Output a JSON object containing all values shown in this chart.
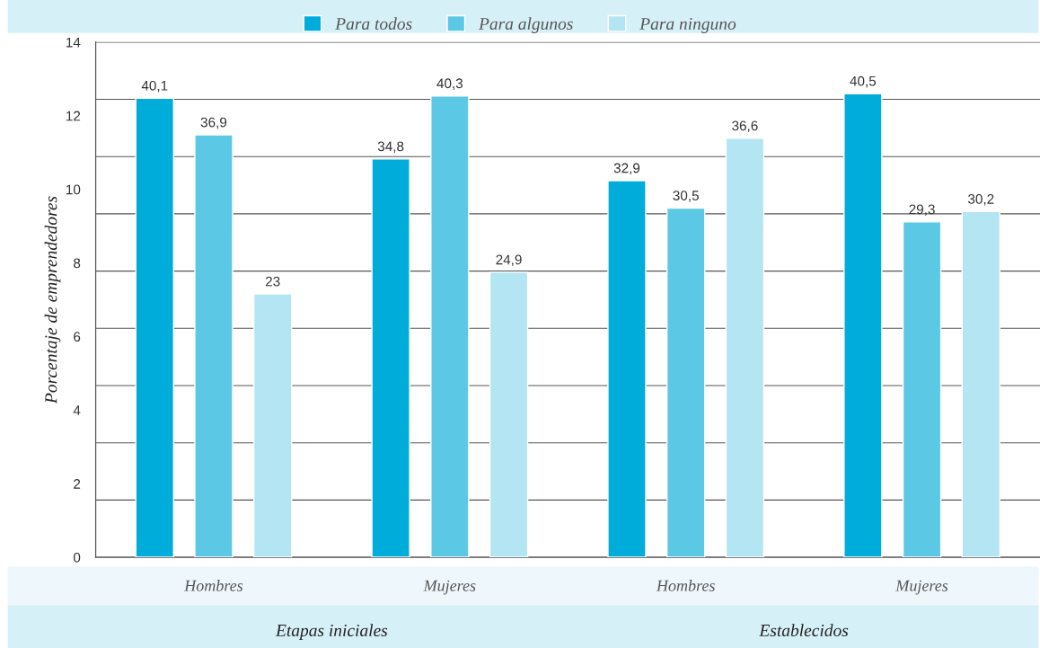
{
  "chart_data": {
    "type": "bar",
    "ylabel": "Porcentaje de emprendedores",
    "categories": [
      "Hombres",
      "Mujeres",
      "Hombres",
      "Mujeres"
    ],
    "series": [
      {
        "name": "Para todos",
        "color": "#00acd9",
        "axis": "y2",
        "values": [
          40.1,
          34.8,
          32.9,
          40.5
        ],
        "value_labels": [
          "40,1",
          "34,8",
          "32,9",
          "40,5"
        ]
      },
      {
        "name": "Para algunos",
        "color": "#5bc8e6",
        "axis": "y2",
        "values": [
          36.9,
          40.3,
          30.5,
          29.3
        ],
        "value_labels": [
          "36,9",
          "40,3",
          "30,5",
          "29,3"
        ]
      },
      {
        "name": "Para ninguno",
        "color": "#b3e5f2",
        "axis": "y2",
        "values": [
          23,
          24.9,
          36.6,
          30.2
        ],
        "value_labels": [
          "23",
          "24,9",
          "36,6",
          "30,2"
        ]
      }
    ],
    "annotations": [
      "Etapas iniciales",
      "Establecidos"
    ],
    "ylim": [
      0,
      14
    ],
    "yticks": [
      0,
      2,
      4,
      6,
      8,
      10,
      12,
      14
    ],
    "y2lim": [
      0,
      45
    ],
    "y2ticks": [
      {
        "value": 5,
        "label": null
      },
      {
        "value": 10,
        "label": null
      },
      {
        "value": 15,
        "label": null
      },
      {
        "value": 20,
        "label": null
      },
      {
        "value": 25,
        "label": null
      },
      {
        "value": 30,
        "label": null
      },
      {
        "value": 35,
        "label": null
      },
      {
        "value": 40,
        "label": null
      },
      {
        "value": 45,
        "label": null
      }
    ],
    "grid": "y",
    "legend": "top"
  }
}
